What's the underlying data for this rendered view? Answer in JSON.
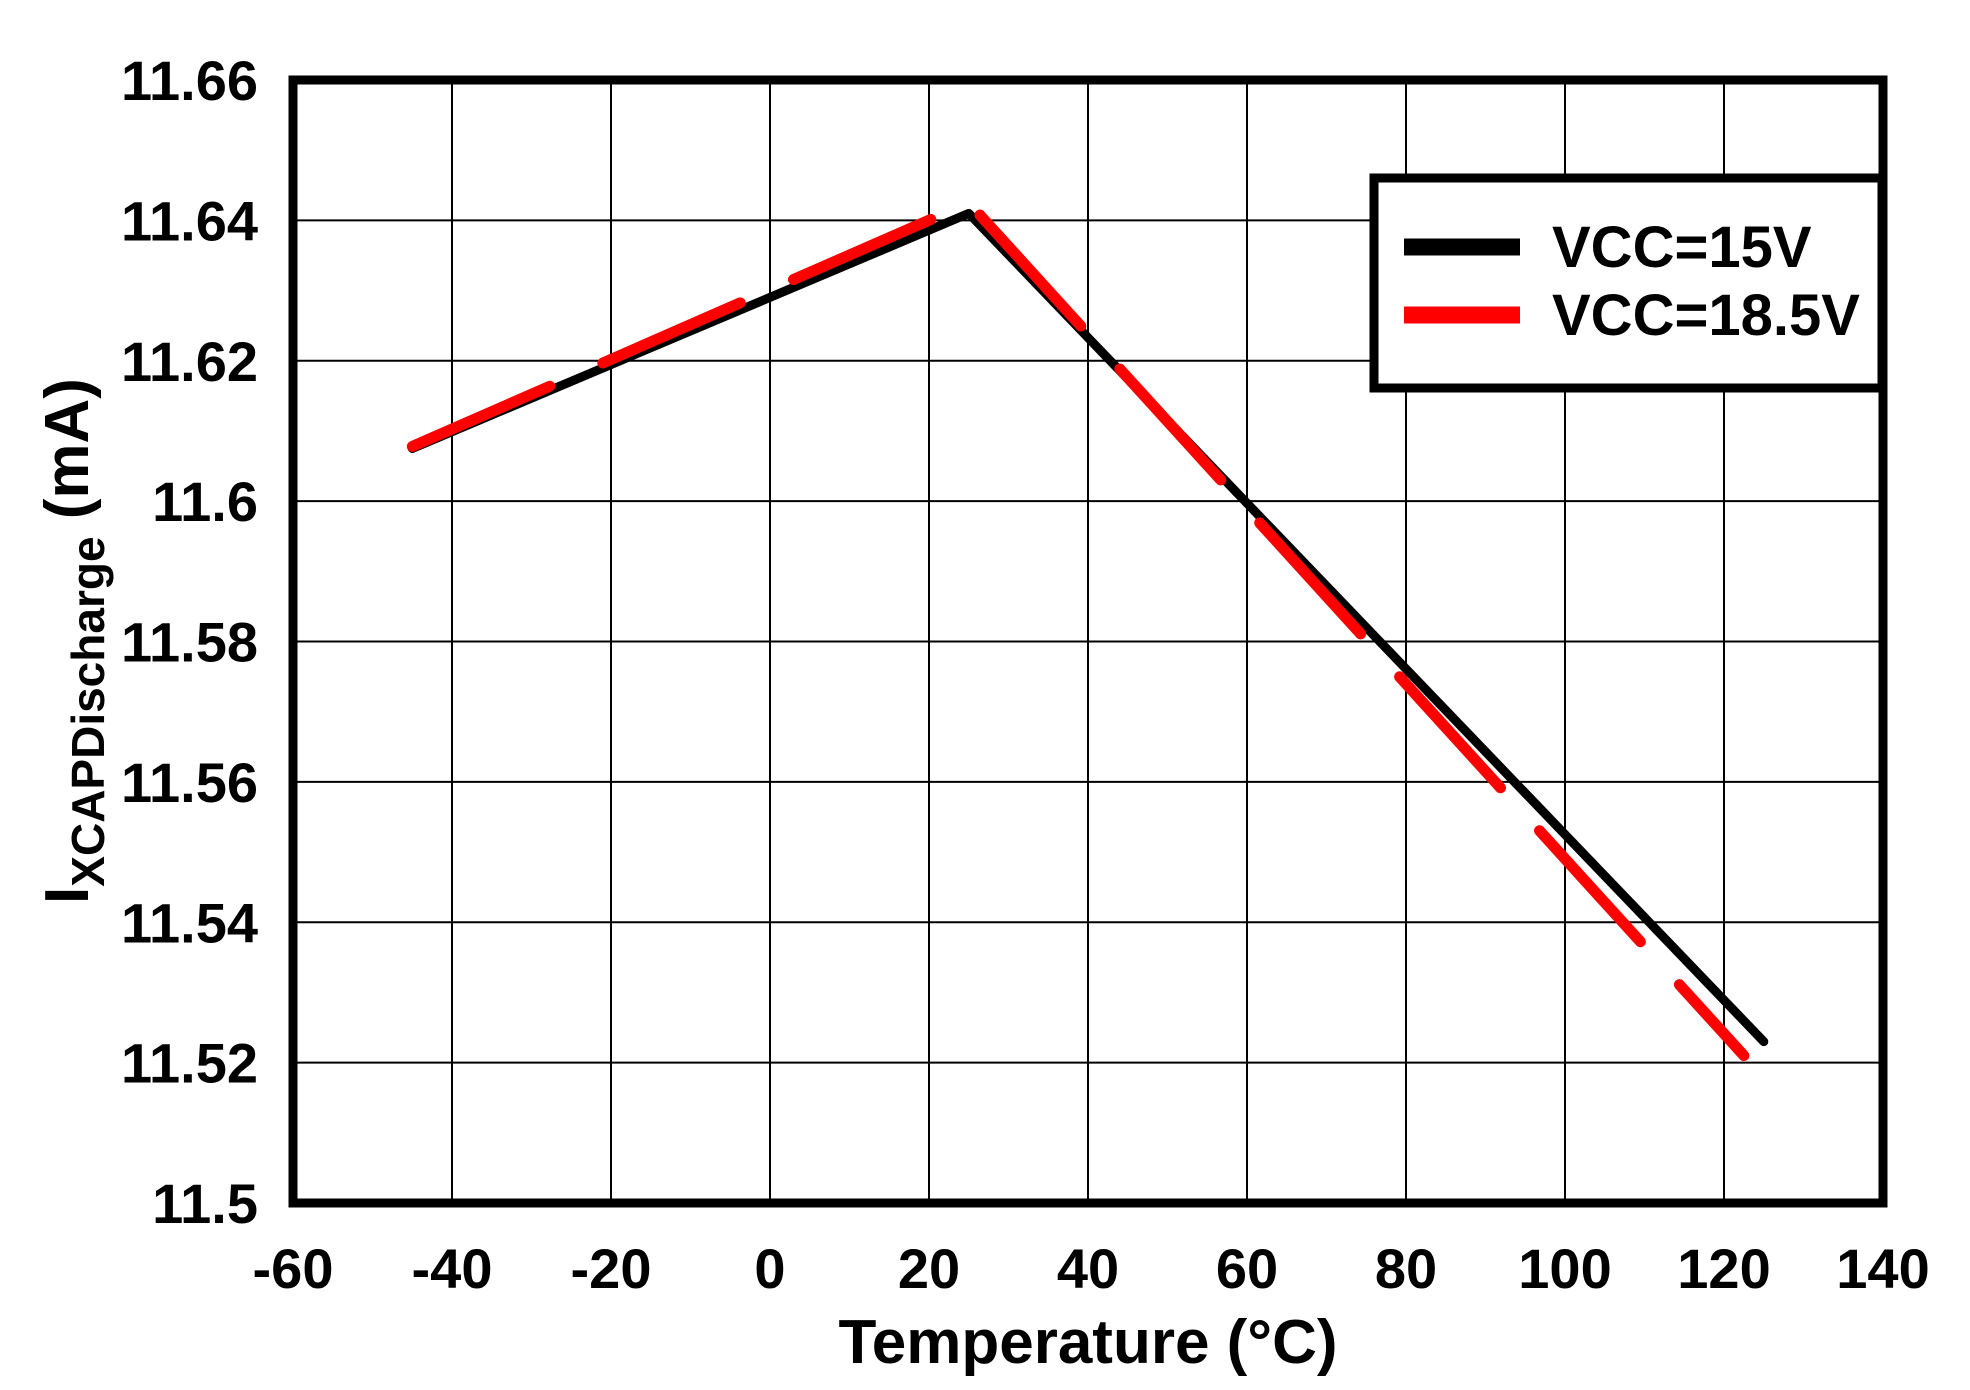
{
  "chart_data": {
    "type": "line",
    "title": "",
    "xlabel": "Temperature (°C)",
    "ylabel": {
      "prefix": "I",
      "subscript": "XCAPDischarge",
      "suffix": " (mA)"
    },
    "xlim": [
      -60,
      140
    ],
    "ylim": [
      11.5,
      11.66
    ],
    "xticks": {
      "values": [
        -60,
        -40,
        -20,
        0,
        20,
        40,
        60,
        80,
        100,
        120,
        140
      ],
      "labels": [
        "-60",
        "-40",
        "-20",
        "0",
        "20",
        "40",
        "60",
        "80",
        "100",
        "120",
        "140"
      ]
    },
    "yticks": {
      "values": [
        11.5,
        11.52,
        11.54,
        11.56,
        11.58,
        11.6,
        11.62,
        11.64,
        11.66
      ],
      "labels": [
        "11.5",
        "11.52",
        "11.54",
        "11.56",
        "11.58",
        "11.6",
        "11.62",
        "11.64",
        "11.66"
      ]
    },
    "grid": true,
    "legend": {
      "position": "top-right",
      "entries": [
        {
          "label": "VCC=15V",
          "color": "#000000",
          "line_style": "solid"
        },
        {
          "label": "VCC=18.5V",
          "color": "#ff0000",
          "line_style": "dashed"
        }
      ]
    },
    "series": [
      {
        "name": "VCC=15V",
        "color": "#000000",
        "line_style": "solid",
        "points": [
          [
            -45,
            11.6075
          ],
          [
            25,
            11.641
          ],
          [
            125,
            11.523
          ]
        ]
      },
      {
        "name": "VCC=18.5V",
        "color": "#ff0000",
        "line_style": "dashed",
        "points": [
          [
            -45,
            11.6078
          ],
          [
            25,
            11.6425
          ],
          [
            122.5,
            11.521
          ]
        ]
      }
    ],
    "colors": {
      "axis": "#000000",
      "grid": "#000000",
      "background": "#ffffff",
      "red": "#ff0000"
    }
  }
}
